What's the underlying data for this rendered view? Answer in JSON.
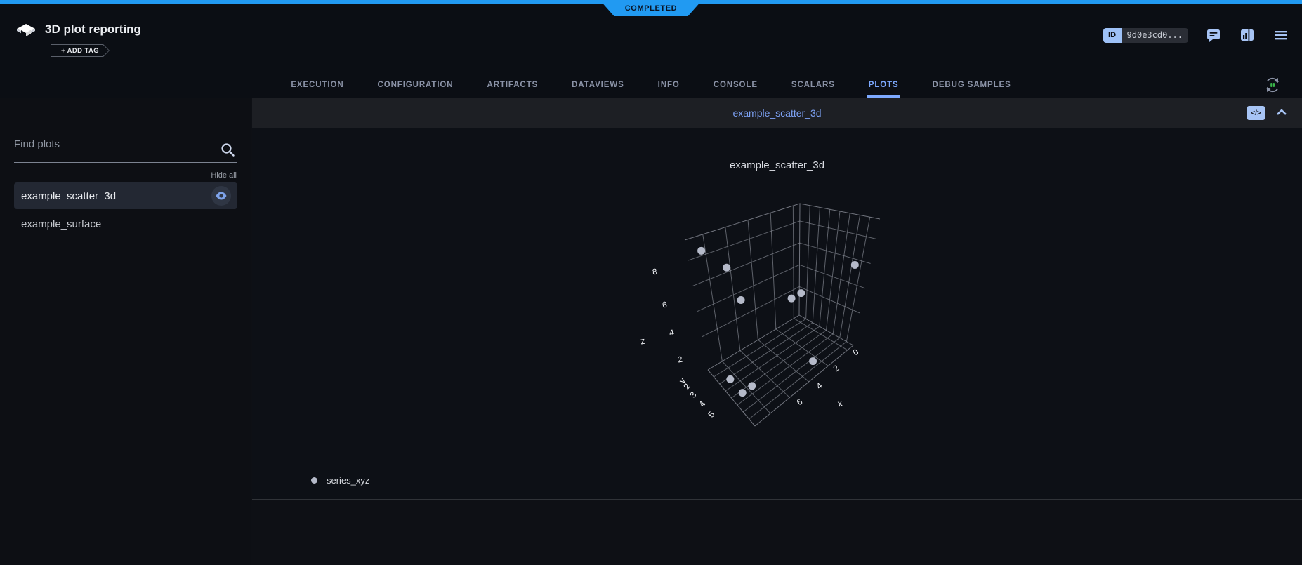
{
  "app": {
    "status_badge": "COMPLETED",
    "title": "3D plot reporting",
    "add_tag_label": "+ ADD TAG",
    "id_label": "ID",
    "id_value": "9d0e3cd0...",
    "accent_blue": "#219af2"
  },
  "tabs": {
    "items": [
      "EXECUTION",
      "CONFIGURATION",
      "ARTIFACTS",
      "DATAVIEWS",
      "INFO",
      "CONSOLE",
      "SCALARS",
      "PLOTS",
      "DEBUG SAMPLES"
    ],
    "active": "PLOTS"
  },
  "sidebar": {
    "search_placeholder": "Find plots",
    "hide_all_label": "Hide all",
    "items": [
      {
        "label": "example_scatter_3d",
        "selected": true
      },
      {
        "label": "example_surface",
        "selected": false
      }
    ]
  },
  "widget": {
    "header_title": "example_scatter_3d",
    "code_icon_label": "</>"
  },
  "chart_data": {
    "type": "scatter",
    "subtype": "scatter3d",
    "title": "example_scatter_3d",
    "legend": [
      {
        "name": "series_xyz",
        "marker_color": "#b5bac9"
      }
    ],
    "series": [
      {
        "name": "series_xyz",
        "points_xyz": [
          [
            9,
            2,
            9
          ],
          [
            7,
            2,
            7
          ],
          [
            0,
            5,
            6
          ],
          [
            6,
            2,
            4
          ],
          [
            1,
            2,
            2
          ],
          [
            0,
            2,
            2
          ],
          [
            3,
            5,
            0
          ],
          [
            9,
            3,
            0
          ],
          [
            9,
            4,
            0
          ],
          [
            8,
            4,
            0
          ]
        ]
      }
    ],
    "axes": {
      "x": {
        "title": "x",
        "ticks": [
          0,
          2,
          4,
          6
        ],
        "range": [
          -0.6,
          9.6
        ],
        "grid": [
          0,
          2,
          4,
          6,
          8
        ]
      },
      "y": {
        "title": "y",
        "ticks": [
          2,
          3,
          4,
          5
        ],
        "range": [
          1.5,
          5.5
        ],
        "grid": [
          2,
          2.5,
          3,
          3.5,
          4,
          4.5,
          5
        ]
      },
      "z": {
        "title": "z",
        "ticks": [
          2,
          4,
          6,
          8
        ],
        "range": [
          -0.6,
          9.6
        ],
        "grid": [
          2,
          4,
          6,
          8
        ]
      }
    },
    "grid_on": true,
    "grid_color": "#8a8e98",
    "background": "#0d1016",
    "legend_position": "bottom-left"
  }
}
